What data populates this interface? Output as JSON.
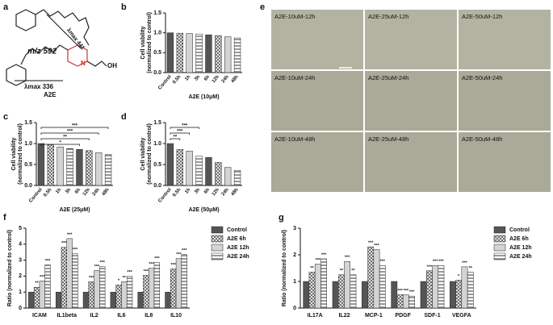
{
  "structure": {
    "panel": "a",
    "labels": [
      "λmax 441",
      "m/z 592",
      "λmax 336",
      "A2E",
      "N",
      "OH"
    ]
  },
  "micrographs": {
    "panel": "e",
    "labels": [
      "A2E-10uM-12h",
      "A2E-25uM-12h",
      "A2E-50uM-12h",
      "A2E-10uM-24h",
      "A2E-25uM-24h",
      "A2E-50uM-24h",
      "A2E-10uM-48h",
      "A2E-25uM-48h",
      "A2E-50uM-48h"
    ]
  },
  "chart_data": [
    {
      "type": "bar",
      "panel": "b",
      "ylabel": [
        "Cell viability",
        "(normalized to control)"
      ],
      "xlabel": "A2E (10μM)",
      "categories": [
        "Control",
        "0.5h",
        "1h",
        "3h",
        "6h",
        "12h",
        "24h",
        "48h"
      ],
      "values": [
        1.0,
        0.99,
        0.98,
        0.97,
        0.95,
        0.93,
        0.9,
        0.87
      ],
      "color": "#555555",
      "ylim": [
        0,
        1.5
      ],
      "yticks": [
        {
          "value": 0,
          "label": "0.0"
        },
        0.5,
        {
          "value": 1,
          "label": "1.0"
        },
        1.5
      ]
    },
    {
      "type": "bar",
      "panel": "c",
      "ylabel": [
        "Cell viability",
        "(normalized to control)"
      ],
      "xlabel": "A2E (25μM)",
      "categories": [
        "Control",
        "0.5h",
        "1h",
        "3h",
        "6h",
        "12h",
        "24h",
        "48h"
      ],
      "values": [
        1.0,
        0.97,
        0.92,
        0.88,
        0.86,
        0.83,
        0.78,
        0.74
      ],
      "color": "#555555",
      "ylim": [
        0,
        1.5
      ],
      "yticks": [
        {
          "value": 0,
          "label": "0.0"
        },
        0.5,
        {
          "value": 1,
          "label": "1.0"
        },
        1.5
      ],
      "brackets": [
        {
          "from": "Control",
          "to": "48h",
          "label": "***"
        },
        {
          "from": "Control",
          "to": "24h",
          "label": "***"
        },
        {
          "from": "Control",
          "to": "12h",
          "label": "**"
        },
        {
          "from": "Control",
          "to": "6h",
          "label": "*"
        }
      ]
    },
    {
      "type": "bar",
      "panel": "d",
      "ylabel": [
        "Cell viability",
        "(normalized to control)"
      ],
      "xlabel": "A2E (50μM)",
      "categories": [
        "Control",
        "0.5h",
        "1h",
        "3h",
        "6h",
        "12h",
        "24h",
        "48h"
      ],
      "values": [
        1.0,
        0.86,
        0.82,
        0.7,
        0.67,
        0.55,
        0.43,
        0.36
      ],
      "color": "#555555",
      "ylim": [
        0,
        1.5
      ],
      "yticks": [
        {
          "value": 0,
          "label": "0.0"
        },
        0.5,
        {
          "value": 1,
          "label": "1.0"
        },
        1.5
      ],
      "brackets": [
        {
          "from": "Control",
          "to": "3h",
          "label": "***"
        },
        {
          "from": "Control",
          "to": "1h",
          "label": "***"
        },
        {
          "from": "Control",
          "to": "0.5h",
          "label": "**"
        }
      ]
    },
    {
      "type": "grouped_bar",
      "panel": "f",
      "ylabel": "Ratio (normalized to control)",
      "categories": [
        "ICAM",
        "IL1beta",
        "IL2",
        "IL6",
        "IL8",
        "IL10"
      ],
      "series": [
        {
          "name": "Control",
          "color": "#555555",
          "values": [
            1,
            1,
            1,
            1,
            1,
            1
          ]
        },
        {
          "name": "A2E 6h",
          "color": "#555555",
          "values": [
            1.3,
            3.8,
            1.65,
            1.45,
            2.05,
            2.45
          ],
          "annotations": [
            "**",
            "***",
            "***",
            "*",
            "***",
            "***"
          ]
        },
        {
          "name": "A2E 12h",
          "color": "#555555",
          "values": [
            1.7,
            4.35,
            2.35,
            1.65,
            2.5,
            3.1
          ],
          "annotations": [
            "***",
            "***",
            "***",
            "**",
            "***",
            "***"
          ]
        },
        {
          "name": "A2E 24h",
          "color": "#555555",
          "values": [
            2.7,
            3.4,
            2.6,
            2.0,
            2.85,
            3.35
          ],
          "annotations": [
            "***",
            "***",
            "***",
            "***",
            "***",
            "***"
          ]
        }
      ],
      "ylim": [
        0,
        5
      ],
      "yticks": [
        0,
        1,
        2,
        3,
        4,
        5
      ],
      "legend": "right"
    },
    {
      "type": "grouped_bar",
      "panel": "g",
      "ylabel": "Ratio (normalized to control)",
      "categories": [
        "IL17A",
        "IL22",
        "MCP-1",
        "PDGF",
        "SDF-1",
        "VEGFA"
      ],
      "series": [
        {
          "name": "Control",
          "color": "#555555",
          "values": [
            1,
            1,
            1,
            1,
            1,
            1
          ]
        },
        {
          "name": "A2E 6h",
          "color": "#555555",
          "values": [
            1.35,
            1.25,
            2.3,
            0.5,
            1.4,
            1.05
          ],
          "annotations": [
            "**",
            "**",
            "***",
            "***",
            "***",
            "*"
          ]
        },
        {
          "name": "A2E 12h",
          "color": "#555555",
          "values": [
            1.65,
            1.75,
            2.2,
            0.5,
            1.6,
            1.55
          ],
          "annotations": [
            "***",
            "***",
            "***",
            "***",
            "***",
            "***"
          ]
        },
        {
          "name": "A2E 24h",
          "color": "#555555",
          "values": [
            1.85,
            1.25,
            1.6,
            0.45,
            1.6,
            1.35
          ],
          "annotations": [
            "***",
            "**",
            "***",
            "***",
            "***",
            "**"
          ]
        }
      ],
      "ylim": [
        0,
        3
      ],
      "yticks": [
        0,
        1,
        2,
        3
      ],
      "legend": "right"
    }
  ]
}
